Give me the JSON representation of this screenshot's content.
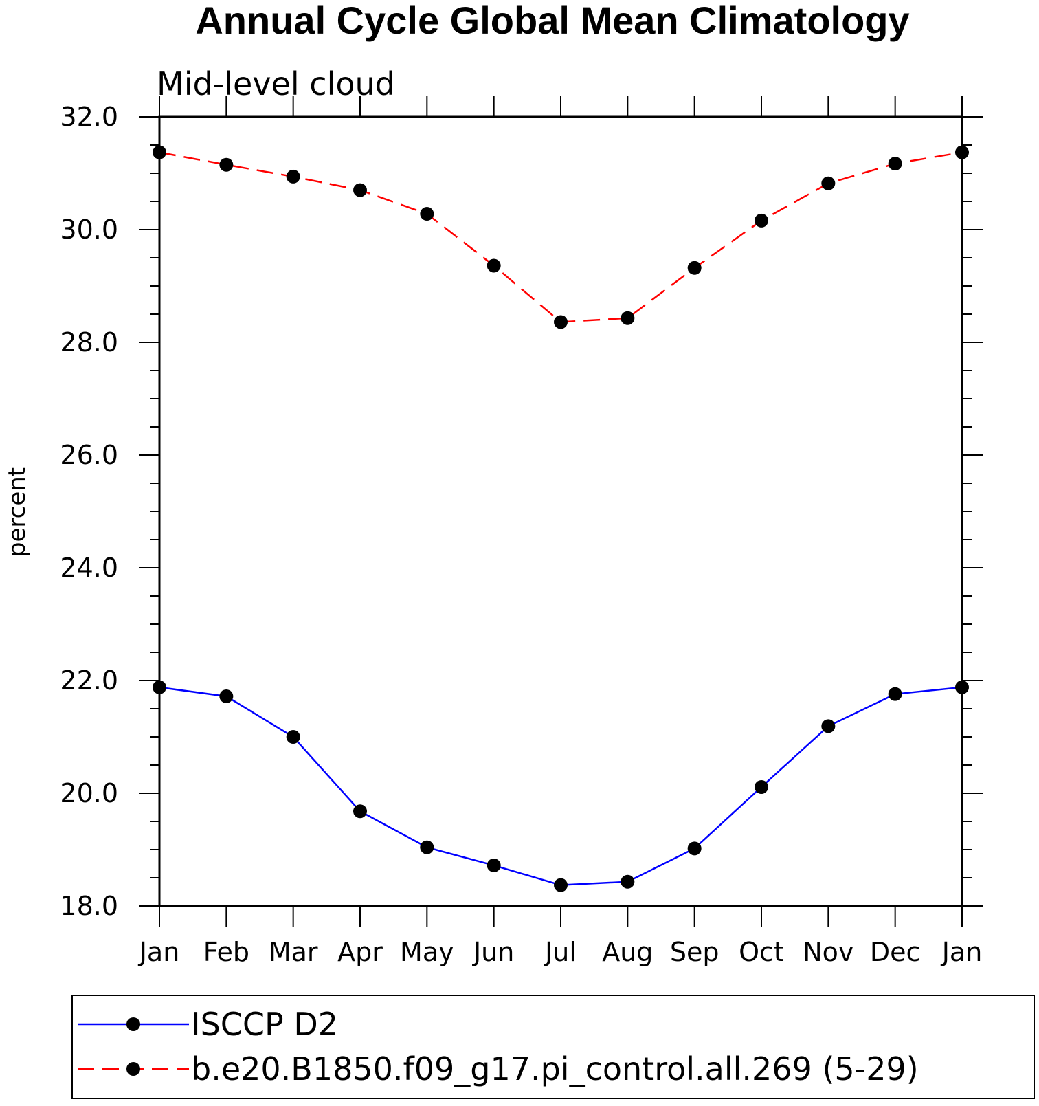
{
  "chart_data": {
    "type": "line",
    "title": "Annual Cycle Global Mean Climatology",
    "subtitle": "Mid-level cloud",
    "xlabel": "",
    "ylabel": "percent",
    "categories": [
      "Jan",
      "Feb",
      "Mar",
      "Apr",
      "May",
      "Jun",
      "Jul",
      "Aug",
      "Sep",
      "Oct",
      "Nov",
      "Dec",
      "Jan"
    ],
    "ylim": [
      18.0,
      32.0
    ],
    "yticks": [
      "18.0",
      "20.0",
      "22.0",
      "24.0",
      "26.0",
      "28.0",
      "30.0",
      "32.0"
    ],
    "ytick_values": [
      18,
      20,
      22,
      24,
      26,
      28,
      30,
      32
    ],
    "yminor_step": 0.5,
    "grid": false,
    "legend_position": "bottom",
    "series": [
      {
        "name": "ISCCP D2",
        "color": "#0000ff",
        "line_style": "solid",
        "marker": "filled-circle",
        "values": [
          21.88,
          21.72,
          21.0,
          19.68,
          19.04,
          18.72,
          18.37,
          18.43,
          19.02,
          20.11,
          21.19,
          21.76,
          21.88
        ]
      },
      {
        "name": "b.e20.B1850.f09_g17.pi_control.all.269 (5-29)",
        "color": "#ff0000",
        "line_style": "dashed",
        "marker": "filled-circle",
        "values": [
          31.37,
          31.15,
          30.94,
          30.7,
          30.28,
          29.36,
          28.36,
          28.43,
          29.32,
          30.16,
          30.82,
          31.17,
          31.37
        ]
      }
    ]
  }
}
